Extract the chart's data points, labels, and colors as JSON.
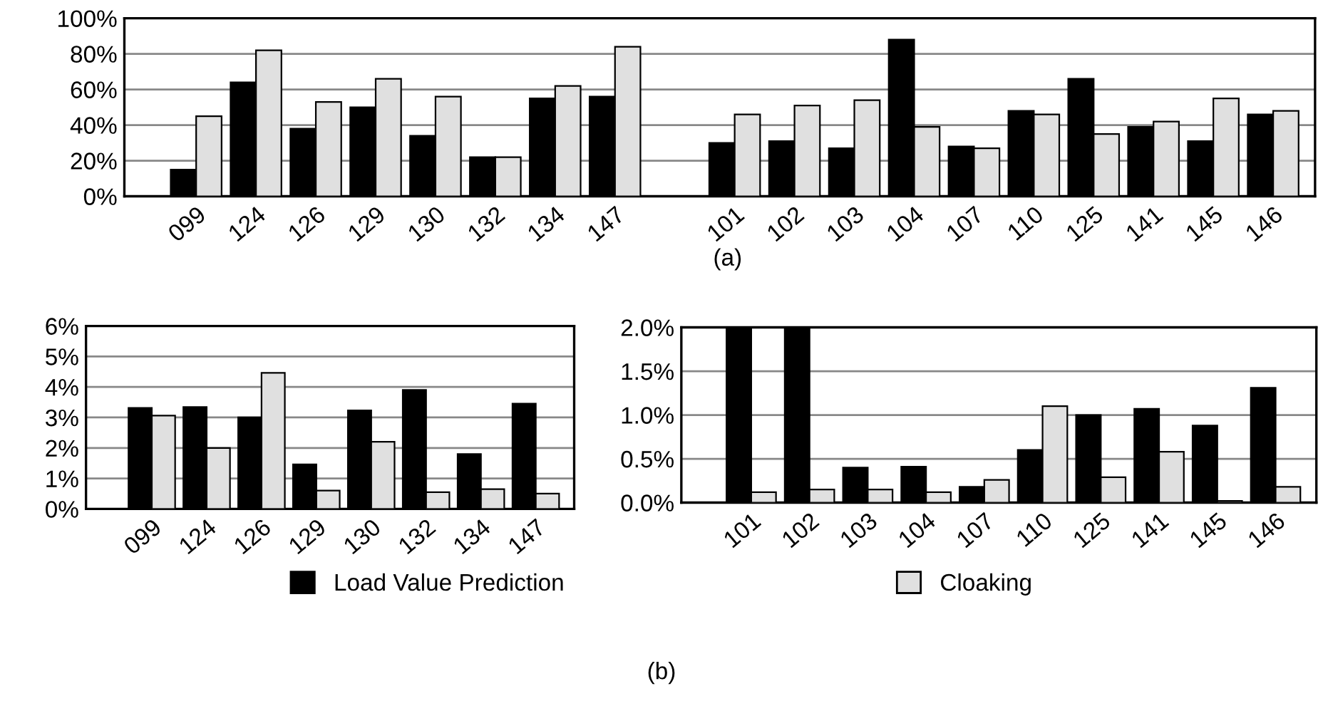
{
  "chart_data": [
    {
      "type": "bar",
      "categories": [
        "099",
        "124",
        "126",
        "129",
        "130",
        "132",
        "134",
        "147",
        null,
        "101",
        "102",
        "103",
        "104",
        "107",
        "110",
        "125",
        "141",
        "145",
        "146"
      ],
      "series": [
        {
          "name": "Load Value Prediction",
          "color": "#000000",
          "values": [
            15,
            64,
            38,
            50,
            34,
            22,
            55,
            56,
            null,
            30,
            31,
            27,
            88,
            28,
            48,
            66,
            39,
            31,
            46
          ]
        },
        {
          "name": "Cloaking",
          "color": "#e0e0e0",
          "values": [
            45,
            82,
            53,
            66,
            56,
            22,
            62,
            84,
            null,
            46,
            51,
            54,
            39,
            27,
            46,
            35,
            42,
            55,
            48
          ]
        }
      ],
      "legend": "bottom",
      "ylim": [
        0,
        100
      ],
      "yticks": [
        {
          "value": 0,
          "label": "0%"
        },
        {
          "value": 20,
          "label": "20%"
        },
        {
          "value": 40,
          "label": "40%"
        },
        {
          "value": 60,
          "label": "60%"
        },
        {
          "value": 80,
          "label": "80%"
        },
        {
          "value": 100,
          "label": "100%"
        }
      ],
      "grid": "y",
      "annotations": [
        "(a)"
      ]
    },
    {
      "type": "bar",
      "categories": [
        "099",
        "124",
        "126",
        "129",
        "130",
        "132",
        "134",
        "147"
      ],
      "series": [
        {
          "color": "#000000",
          "values": [
            3.31,
            3.34,
            3.0,
            1.46,
            3.23,
            3.9,
            1.8,
            3.45
          ]
        },
        {
          "color": "#e0e0e0",
          "values": [
            3.06,
            2.0,
            4.46,
            0.6,
            2.2,
            0.55,
            0.65,
            0.5
          ]
        }
      ],
      "ylim": [
        0,
        6
      ],
      "yticks": [
        {
          "value": 0,
          "label": "0%"
        },
        {
          "value": 1,
          "label": "1%"
        },
        {
          "value": 2,
          "label": "2%"
        },
        {
          "value": 3,
          "label": "3%"
        },
        {
          "value": 4,
          "label": "4%"
        },
        {
          "value": 5,
          "label": "5%"
        },
        {
          "value": 6,
          "label": "6%"
        }
      ],
      "grid": "y",
      "annotations": [
        "(b)"
      ]
    },
    {
      "type": "bar",
      "categories": [
        "101",
        "102",
        "103",
        "104",
        "107",
        "110",
        "125",
        "141",
        "145",
        "146"
      ],
      "series": [
        {
          "color": "#000000",
          "values": [
            2.0,
            1.98,
            0.4,
            0.41,
            0.18,
            0.6,
            1.0,
            1.07,
            0.88,
            1.31
          ]
        },
        {
          "color": "#e0e0e0",
          "values": [
            0.12,
            0.15,
            0.15,
            0.12,
            0.26,
            1.1,
            0.29,
            0.58,
            0.02,
            0.18
          ]
        }
      ],
      "ylim": [
        0,
        2.0
      ],
      "yticks": [
        {
          "value": 0,
          "label": "0.0%"
        },
        {
          "value": 0.5,
          "label": "0.5%"
        },
        {
          "value": 1.0,
          "label": "1.0%"
        },
        {
          "value": 1.5,
          "label": "1.5%"
        },
        {
          "value": 2.0,
          "label": "2.0%"
        }
      ],
      "grid": "y"
    }
  ]
}
